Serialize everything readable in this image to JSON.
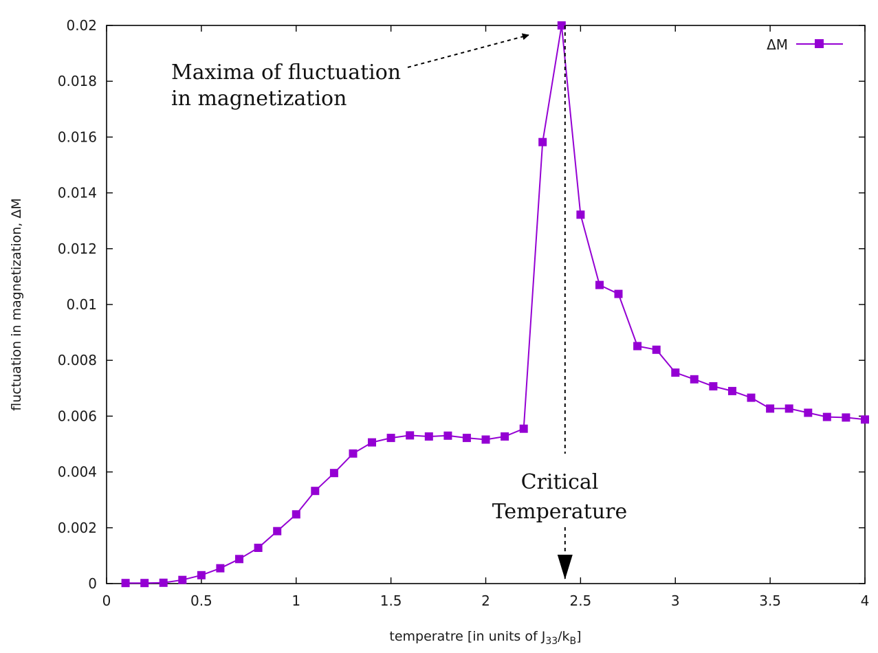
{
  "chart_data": {
    "type": "line",
    "title": "",
    "xlabel": "temperatre [in units of J",
    "xlabel_sub1": "33",
    "xlabel_mid": "/k",
    "xlabel_sub2": "B",
    "xlabel_end": "]",
    "ylabel": "fluctuation in magnetization, ΔM",
    "xlim": [
      0,
      4
    ],
    "ylim": [
      0,
      0.02
    ],
    "xticks": [
      0,
      0.5,
      1,
      1.5,
      2,
      2.5,
      3,
      3.5,
      4
    ],
    "xtick_labels": [
      "0",
      "0.5",
      "1",
      "1.5",
      "2",
      "2.5",
      "3",
      "3.5",
      "4"
    ],
    "yticks": [
      0,
      0.002,
      0.004,
      0.006,
      0.008,
      0.01,
      0.012,
      0.014,
      0.016,
      0.018,
      0.02
    ],
    "ytick_labels": [
      "0",
      "0.002",
      "0.004",
      "0.006",
      "0.008",
      "0.01",
      "0.012",
      "0.014",
      "0.016",
      "0.018",
      "0.02"
    ],
    "grid": false,
    "legend_position": "top-right",
    "series": [
      {
        "name": "ΔM",
        "color": "#9400d3",
        "marker": "square",
        "x": [
          0.1,
          0.2,
          0.3,
          0.4,
          0.5,
          0.6,
          0.7,
          0.8,
          0.9,
          1.0,
          1.1,
          1.2,
          1.3,
          1.4,
          1.5,
          1.6,
          1.7,
          1.8,
          1.9,
          2.0,
          2.1,
          2.2,
          2.3,
          2.4,
          2.5,
          2.6,
          2.7,
          2.8,
          2.9,
          3.0,
          3.1,
          3.2,
          3.3,
          3.4,
          3.5,
          3.6,
          3.7,
          3.8,
          3.9,
          4.0
        ],
        "values": [
          2e-05,
          2e-05,
          3e-05,
          0.00013,
          0.0003,
          0.00055,
          0.00088,
          0.00128,
          0.00188,
          0.00248,
          0.00332,
          0.00396,
          0.00466,
          0.00506,
          0.00522,
          0.00531,
          0.00527,
          0.0053,
          0.00522,
          0.00516,
          0.00527,
          0.00555,
          0.01582,
          0.02,
          0.01322,
          0.0107,
          0.01038,
          0.00851,
          0.00838,
          0.00756,
          0.00732,
          0.00707,
          0.0069,
          0.00666,
          0.00627,
          0.00627,
          0.00612,
          0.00597,
          0.00595,
          0.00588
        ]
      }
    ],
    "annotations": [
      {
        "lines": [
          "Maxima of fluctuation",
          "in magnetization"
        ],
        "arrow_to": [
          2.4,
          0.02
        ]
      },
      {
        "lines": [
          "Critical",
          "Temperature"
        ],
        "arrow_from": [
          2.4,
          0.02
        ],
        "arrow_to": [
          2.4,
          0.0
        ]
      }
    ]
  }
}
